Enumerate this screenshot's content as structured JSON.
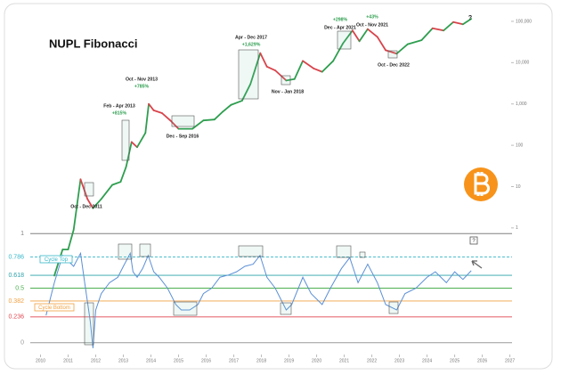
{
  "chart_data": [
    {
      "type": "line",
      "title": "NUPL Fibonacci",
      "log_scale": true,
      "x": [
        2010.5,
        2010.8,
        2011.0,
        2011.2,
        2011.45,
        2011.7,
        2011.9,
        2012.2,
        2012.6,
        2012.9,
        2013.1,
        2013.3,
        2013.5,
        2013.8,
        2013.92,
        2014.1,
        2014.4,
        2014.7,
        2015.0,
        2015.5,
        2015.9,
        2016.3,
        2016.6,
        2016.9,
        2017.3,
        2017.6,
        2017.96,
        2018.2,
        2018.5,
        2018.9,
        2019.2,
        2019.5,
        2019.9,
        2020.2,
        2020.6,
        2020.95,
        2021.3,
        2021.55,
        2021.85,
        2022.2,
        2022.5,
        2022.9,
        2023.3,
        2023.8,
        2024.2,
        2024.6,
        2024.95,
        2025.3,
        2025.6
      ],
      "values": [
        0.07,
        0.3,
        0.3,
        0.9,
        15,
        5,
        3,
        5,
        11,
        13,
        30,
        120,
        90,
        200,
        1000,
        700,
        600,
        400,
        250,
        250,
        400,
        420,
        650,
        950,
        1200,
        3000,
        17000,
        8000,
        6500,
        3700,
        4000,
        11000,
        7200,
        6000,
        11000,
        29000,
        60000,
        33000,
        65000,
        42000,
        20000,
        16500,
        28000,
        35000,
        68000,
        60000,
        96000,
        85000,
        115000
      ],
      "up_color": "#2e9e4f",
      "down_color": "#d9434b",
      "xlim": [
        2009.5,
        2027.4
      ],
      "ylim": [
        0.001,
        200000
      ],
      "yticks": [
        1,
        10,
        100,
        {
          "value": 1000,
          "label": "1,000"
        },
        {
          "value": 10000,
          "label": "10,000"
        },
        {
          "value": 100000,
          "label": "100,000"
        }
      ],
      "annotations": [
        "Oct - Dec 2011",
        "Feb - Apr 2013",
        "+815%",
        "Oct - Nov 2013",
        "+785%",
        "Dec - Sep 2016",
        "Apr - Dec 2017",
        "+1,629%",
        "Nov - Jan 2018",
        "+298%",
        "Dec - Apr 2021",
        "+43%",
        "Oct - Nov 2021",
        "Oct - Dec 2022",
        "?"
      ]
    },
    {
      "type": "line",
      "x": [
        2010.2,
        2010.5,
        2010.8,
        2011.0,
        2011.2,
        2011.45,
        2011.6,
        2011.8,
        2011.9,
        2012.0,
        2012.2,
        2012.5,
        2012.8,
        2013.0,
        2013.25,
        2013.35,
        2013.5,
        2013.7,
        2013.9,
        2014.1,
        2014.3,
        2014.6,
        2014.9,
        2015.1,
        2015.4,
        2015.7,
        2015.9,
        2016.2,
        2016.5,
        2016.8,
        2017.1,
        2017.4,
        2017.7,
        2017.95,
        2018.2,
        2018.5,
        2018.9,
        2019.1,
        2019.5,
        2019.8,
        2020.2,
        2020.5,
        2020.9,
        2021.2,
        2021.5,
        2021.85,
        2022.2,
        2022.5,
        2022.9,
        2023.2,
        2023.6,
        2024.0,
        2024.3,
        2024.7,
        2025.0,
        2025.3,
        2025.6
      ],
      "values": [
        0.25,
        0.55,
        0.8,
        0.75,
        0.7,
        0.82,
        0.55,
        0.2,
        -0.05,
        0.3,
        0.45,
        0.55,
        0.6,
        0.7,
        0.82,
        0.65,
        0.6,
        0.68,
        0.8,
        0.65,
        0.6,
        0.5,
        0.35,
        0.3,
        0.3,
        0.35,
        0.45,
        0.5,
        0.6,
        0.62,
        0.65,
        0.7,
        0.72,
        0.8,
        0.6,
        0.5,
        0.3,
        0.35,
        0.6,
        0.45,
        0.35,
        0.5,
        0.68,
        0.78,
        0.55,
        0.72,
        0.55,
        0.35,
        0.3,
        0.45,
        0.5,
        0.6,
        0.65,
        0.55,
        0.65,
        0.58,
        0.66
      ],
      "color": "#5b8fd6",
      "xlim": [
        2009.5,
        2027.4
      ],
      "ylim": [
        -0.1,
        1.1
      ],
      "yticks": [
        0,
        0.236,
        0.382,
        0.5,
        0.618,
        0.786,
        1
      ],
      "level_colors": [
        "#9a9a9a",
        "#e0464f",
        "#f0a040",
        "#4caf50",
        "#2aa0a8",
        "#35b6c8",
        "#808080"
      ],
      "xticks": [
        2010,
        2011,
        2012,
        2013,
        2014,
        2015,
        2016,
        2017,
        2018,
        2019,
        2020,
        2021,
        2022,
        2023,
        2024,
        2025,
        2026,
        2027
      ],
      "annotations": [
        "Cycle Top",
        "Cycle Bottom",
        "?"
      ]
    }
  ]
}
